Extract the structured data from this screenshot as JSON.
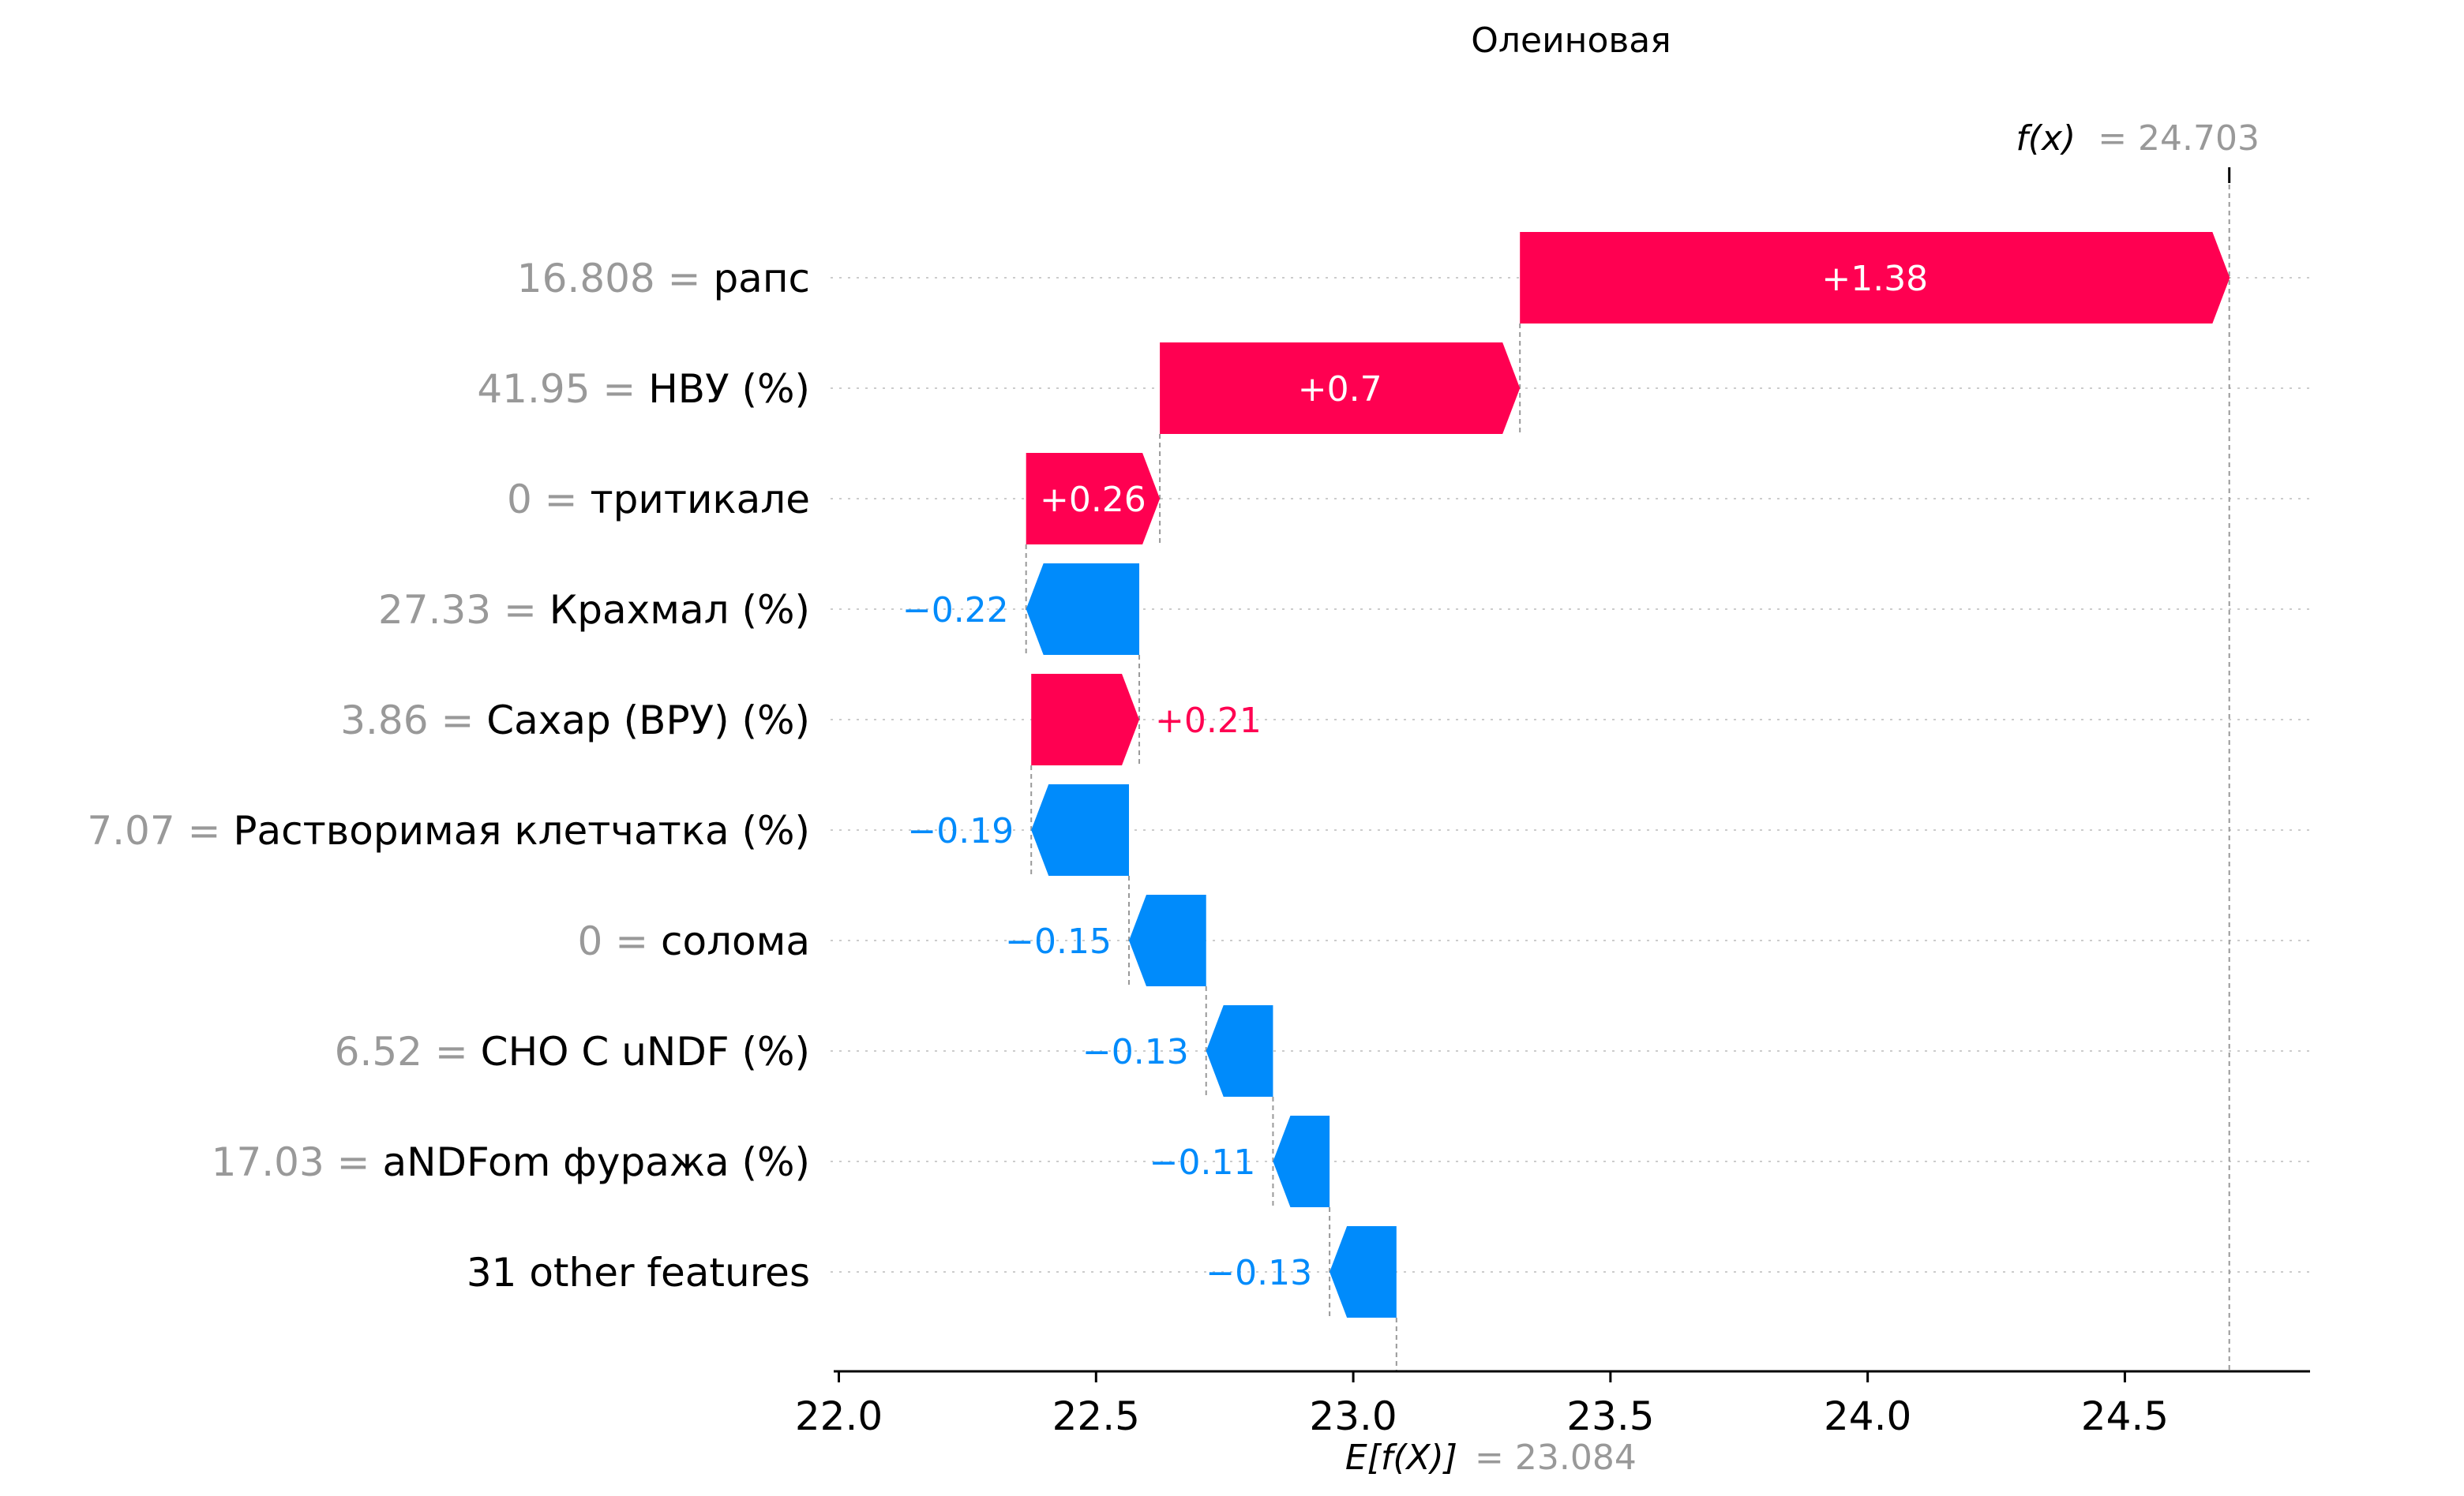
{
  "chart_data": {
    "type": "waterfall",
    "title": "Олеиновая",
    "base_value": 23.084,
    "output_value": 24.703,
    "base_label_prefix": "E[f(X)]",
    "base_label_value": "= 23.084",
    "output_label_prefix": "f(x)",
    "output_label_value": "= 24.703",
    "xlim": [
      21.99,
      24.86
    ],
    "xticks": [
      22.0,
      22.5,
      23.0,
      23.5,
      24.0,
      24.5
    ],
    "xtick_labels": [
      "22.0",
      "22.5",
      "23.0",
      "23.5",
      "24.0",
      "24.5"
    ],
    "features": [
      {
        "value_text": "16.808 =",
        "name": "рапс",
        "contribution": 1.38,
        "label": "+1.38"
      },
      {
        "value_text": "41.95 =",
        "name": "НВУ (%)",
        "contribution": 0.7,
        "label": "+0.7"
      },
      {
        "value_text": "0 =",
        "name": "тритикале",
        "contribution": 0.26,
        "label": "+0.26"
      },
      {
        "value_text": "27.33 =",
        "name": "Крахмал (%)",
        "contribution": -0.22,
        "label": "−0.22"
      },
      {
        "value_text": "3.86 =",
        "name": "Сахар (ВРУ) (%)",
        "contribution": 0.21,
        "label": "+0.21"
      },
      {
        "value_text": "7.07 =",
        "name": "Растворимая клетчатка (%)",
        "contribution": -0.19,
        "label": "−0.19"
      },
      {
        "value_text": "0 =",
        "name": "солома",
        "contribution": -0.15,
        "label": "−0.15"
      },
      {
        "value_text": "6.52 =",
        "name": "CHO C uNDF (%)",
        "contribution": -0.13,
        "label": "−0.13"
      },
      {
        "value_text": "17.03 =",
        "name": "aNDFom фуража (%)",
        "contribution": -0.11,
        "label": "−0.11"
      },
      {
        "value_text": "",
        "name": "31 other features",
        "contribution": -0.13,
        "label": "−0.13"
      }
    ],
    "colors": {
      "positive": "#ff0051",
      "negative": "#008bfb",
      "label_on_bar": "#ffffff",
      "grid": "#cccccc",
      "axis": "#000000",
      "gray": "#999999"
    }
  }
}
